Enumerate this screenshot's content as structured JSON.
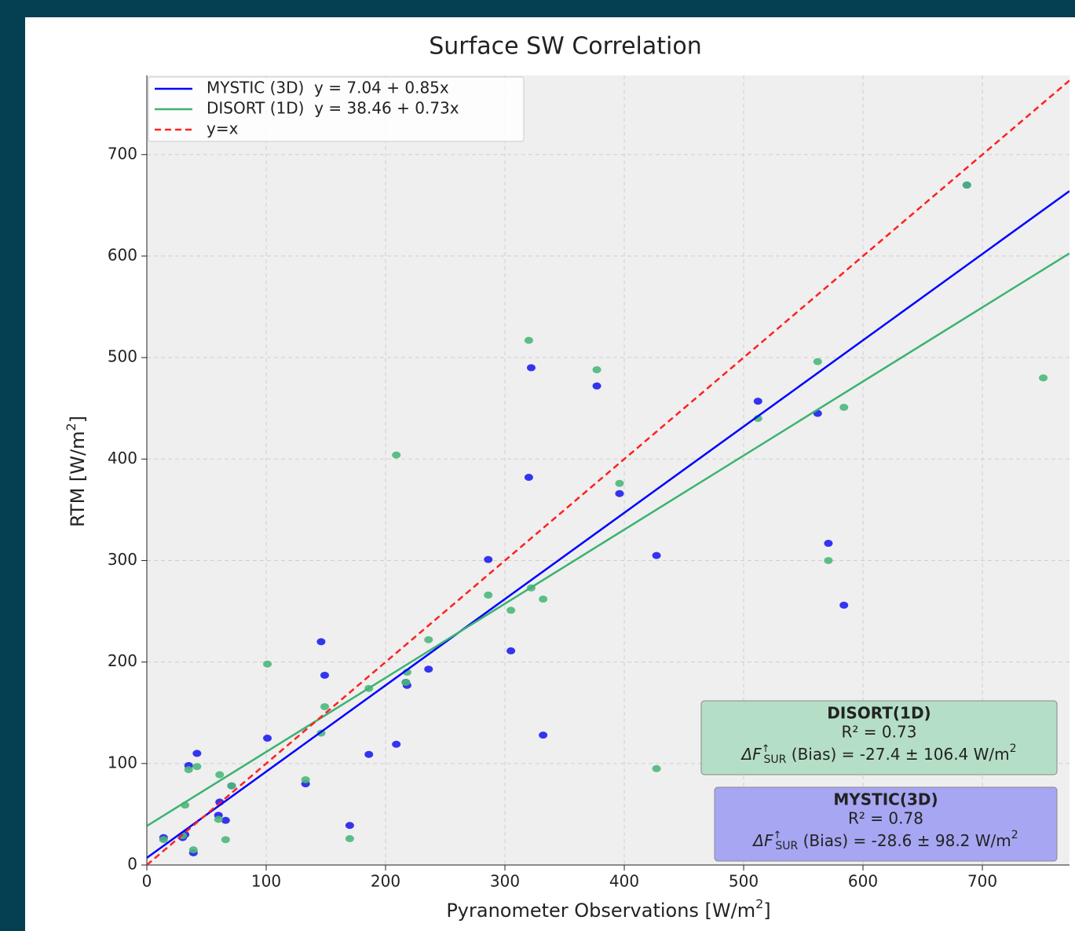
{
  "chart_data": {
    "type": "scatter",
    "title": "Surface SW Correlation",
    "x_label": [
      "Pyranometer Observations [W/m",
      "2",
      "]"
    ],
    "y_label": [
      "RTM [W/m",
      "2",
      "]"
    ],
    "xlim": [
      0,
      773
    ],
    "ylim": [
      0,
      778
    ],
    "xticks": [
      0,
      100,
      200,
      300,
      400,
      500,
      600,
      700
    ],
    "yticks": [
      0,
      100,
      200,
      300,
      400,
      500,
      600,
      700
    ],
    "grid": true,
    "legend": "upper left",
    "x": [
      14,
      35,
      42,
      32,
      30,
      39,
      61,
      60,
      71,
      66,
      101,
      133,
      146,
      149,
      170,
      186,
      209,
      218,
      217,
      236,
      286,
      305,
      320,
      322,
      332,
      377,
      396,
      427,
      512,
      562,
      571,
      584,
      687,
      751
    ],
    "series": [
      {
        "color": "#1f1fef",
        "values": [
          27,
          98,
          110,
          30,
          27,
          12,
          62,
          49,
          78,
          44,
          125,
          80,
          220,
          187,
          39,
          109,
          119,
          177,
          180,
          193,
          301,
          211,
          382,
          490,
          128,
          472,
          366,
          305,
          457,
          445,
          317,
          256,
          670,
          null
        ]
      },
      {
        "color": "#4bb77a",
        "values": [
          25,
          94,
          97,
          59,
          29,
          15,
          89,
          45,
          78,
          25,
          198,
          84,
          130,
          156,
          26,
          174,
          404,
          190,
          180,
          222,
          266,
          251,
          517,
          273,
          262,
          488,
          376,
          95,
          440,
          496,
          300,
          451,
          670,
          480
        ]
      }
    ],
    "lines": [
      {
        "name": "MYSTIC (3D)  y = 7.04 + 0.85x",
        "color": "#0000ff",
        "intercept": 7.04,
        "slope": 0.85,
        "dashed": false
      },
      {
        "name": "DISORT (1D)  y = 38.46 + 0.73x",
        "color": "#3cb371",
        "intercept": 38.46,
        "slope": 0.73,
        "dashed": false
      },
      {
        "name": "y=x",
        "color": "#ff2020",
        "intercept": 0,
        "slope": 1,
        "dashed": true
      }
    ],
    "annotations": [
      {
        "title": "DISORT(1D)",
        "r2": "R² = 0.73",
        "delta": "ΔF",
        "arrow": "↑",
        "sub": "SUR",
        "text": " (Bias) = -27.4 ± 106.4 W/m",
        "sup": "2",
        "color": "#b5dec6"
      },
      {
        "title": "MYSTIC(3D)",
        "r2": "R² = 0.78",
        "delta": "ΔF",
        "arrow": "↑",
        "sub": "SUR",
        "text": " (Bias) = -28.6 ± 98.2 W/m",
        "sup": "2",
        "color": "#a6a6f2"
      }
    ]
  }
}
